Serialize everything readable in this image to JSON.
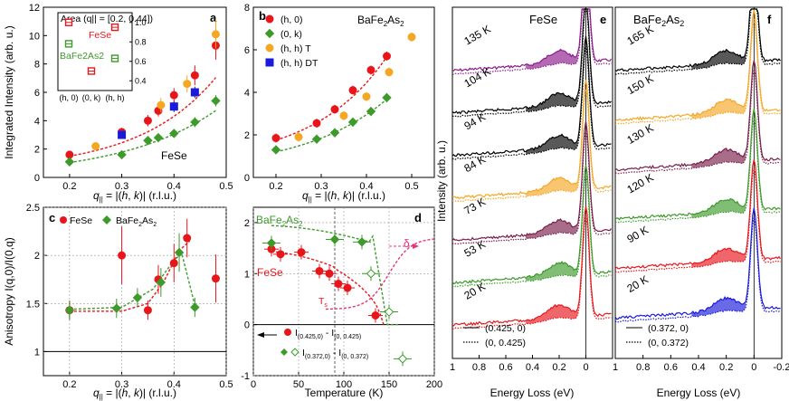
{
  "colors": {
    "red": "#e8161b",
    "green": "#3d9a2b",
    "orange": "#f5a623",
    "blue": "#1a1adc",
    "purple": "#8b1a8b",
    "black": "#000000",
    "plum": "#7a1f4a"
  },
  "chart_data": [
    {
      "panel": "a",
      "type": "scatter",
      "label_text": "FeSe",
      "xlabel": "q|| = |(h, k)| (r.l.u.)",
      "ylabel": "Integrated Intensity (arb. u.)",
      "xlim": [
        0.15,
        0.5
      ],
      "ylim": [
        0,
        12
      ],
      "xticks": [
        "0.2",
        "0.3",
        "0.4",
        "0.5"
      ],
      "yticks": [
        "0",
        "2",
        "4",
        "6",
        "8",
        "10",
        "12"
      ],
      "series": [
        {
          "name": "(h,0)",
          "color": "red",
          "marker": "circle",
          "x": [
            0.2,
            0.3,
            0.35,
            0.37,
            0.4,
            0.44,
            0.48
          ],
          "y": [
            1.6,
            3.2,
            4.0,
            4.7,
            5.8,
            7.2,
            9.3
          ],
          "err": [
            0.15,
            0.3,
            0.4,
            0.4,
            0.5,
            0.7,
            1.0
          ]
        },
        {
          "name": "(0,k)",
          "color": "green",
          "marker": "diamond",
          "x": [
            0.2,
            0.3,
            0.35,
            0.37,
            0.4,
            0.44,
            0.48
          ],
          "y": [
            1.1,
            1.6,
            2.6,
            2.8,
            3.1,
            3.9,
            5.4
          ],
          "err": [
            0.1,
            0.15,
            0.2,
            0.25,
            0.3,
            0.35,
            0.4
          ]
        },
        {
          "name": "(h,h) T",
          "color": "orange",
          "marker": "circle",
          "x": [
            0.25,
            0.375,
            0.425,
            0.48
          ],
          "y": [
            2.2,
            5.1,
            6.6,
            10.1
          ],
          "err": [
            0.2,
            0.5,
            0.6,
            1.0
          ]
        },
        {
          "name": "(h,h) DT",
          "color": "blue",
          "marker": "square",
          "x": [
            0.3,
            0.4,
            0.44
          ],
          "y": [
            3.0,
            5.0,
            6.0
          ],
          "err": [
            0.2,
            0.4,
            0.4
          ]
        }
      ],
      "inset": {
        "title": "Area (q|| = [0.2, 0.44])",
        "xticks": [
          "(h, 0)",
          "(0, k)",
          "(h, h)"
        ],
        "yticks": [
          "0.4",
          "0.6",
          "0.8",
          "1.0"
        ],
        "label_fese": "FeSe",
        "label_bafe": "BaFe2As2"
      }
    },
    {
      "panel": "b",
      "type": "scatter",
      "title": "BaFe2As2",
      "xlabel": "q|| = |(h, k)| (r.l.u.)",
      "xlim": [
        0.15,
        0.55
      ],
      "ylim": [
        0,
        8
      ],
      "xticks": [
        "0.2",
        "0.3",
        "0.4",
        "0.5"
      ],
      "yticks": [
        "0",
        "2",
        "4",
        "6",
        "8"
      ],
      "legend": [
        "(h, 0)",
        "(0, k)",
        "(h, h) T",
        "(h, h) DT"
      ],
      "series": [
        {
          "name": "(h, 0)",
          "color": "red",
          "x": [
            0.2,
            0.29,
            0.33,
            0.37,
            0.41,
            0.445
          ],
          "y": [
            1.85,
            2.55,
            3.2,
            4.1,
            5.05,
            5.7
          ]
        },
        {
          "name": "(0, k)",
          "color": "green",
          "x": [
            0.2,
            0.29,
            0.33,
            0.37,
            0.41,
            0.445
          ],
          "y": [
            1.3,
            1.8,
            2.1,
            2.6,
            3.1,
            3.75
          ]
        },
        {
          "name": "(h, h) T",
          "color": "orange",
          "x": [
            0.25,
            0.35,
            0.4,
            0.45,
            0.5
          ],
          "y": [
            1.9,
            2.9,
            3.8,
            4.95,
            6.6
          ]
        }
      ]
    },
    {
      "panel": "c",
      "type": "scatter",
      "xlabel": "q|| = |(h, k)| (r.l.u.)",
      "ylabel": "Anisotropy I(q,0)/I(0,q)",
      "xlim": [
        0.15,
        0.5
      ],
      "ylim": [
        0.75,
        2.5
      ],
      "xticks": [
        "0.2",
        "0.3",
        "0.4",
        "0.5"
      ],
      "yticks": [
        "1",
        "1.5",
        "2",
        "2.5"
      ],
      "legend": [
        "FeSe",
        "BaFe2As2"
      ],
      "series": [
        {
          "name": "FeSe",
          "color": "red",
          "x": [
            0.2,
            0.3,
            0.35,
            0.37,
            0.4,
            0.425,
            0.48
          ],
          "y": [
            1.43,
            2.0,
            1.43,
            1.75,
            1.92,
            2.18,
            1.76
          ]
        },
        {
          "name": "BaFe2As2",
          "color": "green",
          "x": [
            0.2,
            0.29,
            0.33,
            0.375,
            0.41,
            0.44
          ],
          "y": [
            1.43,
            1.45,
            1.56,
            1.72,
            2.03,
            1.46
          ]
        }
      ]
    },
    {
      "panel": "d",
      "type": "scatter",
      "xlabel": "Temperature (K)",
      "xlim": [
        0,
        200
      ],
      "ylim": [
        -1,
        2.3
      ],
      "xticks": [
        "0",
        "50",
        "100",
        "150",
        "200"
      ],
      "yticks": [
        "-1",
        "0",
        "1",
        "2"
      ],
      "label_bafe": "BaFe2As2",
      "label_fese": "FeSe",
      "label_ts": "Ts",
      "label_delta": "δ",
      "legend": [
        "I(0.425,0) - I(0,0.425)",
        "I(0.372,0) - I(0,0.372)"
      ],
      "series": [
        {
          "name": "FeSe",
          "color": "red",
          "x": [
            20,
            30,
            53,
            73,
            84,
            94,
            104,
            135
          ],
          "y": [
            1.48,
            1.38,
            1.42,
            1.05,
            1.0,
            0.8,
            0.72,
            0.18
          ]
        },
        {
          "name": "BaFe2As2",
          "color": "green",
          "x": [
            20,
            90,
            120,
            130,
            150,
            165
          ],
          "y": [
            1.6,
            1.67,
            1.62,
            1.0,
            0.25,
            -0.67
          ]
        }
      ]
    }
  ],
  "panel_e": {
    "letter": "e",
    "title": "FeSe",
    "temps": [
      "135 K",
      "104 K",
      "94 K",
      "84 K",
      "73 K",
      "53 K",
      "20 K"
    ],
    "legend": [
      "(0.425, 0)",
      "(0, 0.425)"
    ],
    "xlabel": "Energy Loss (eV)",
    "ylabel": "Intensity (arb. u.)",
    "xticks": [
      "1",
      "0.8",
      "0.6",
      "0.4",
      "0.2",
      "0"
    ]
  },
  "panel_f": {
    "letter": "f",
    "title": "BaFe2As2",
    "temps": [
      "165 K",
      "150 K",
      "130 K",
      "120 K",
      "90 K",
      "20 K"
    ],
    "legend": [
      "(0.372, 0)",
      "(0, 0.372)"
    ],
    "xlabel": "Energy Loss (eV)",
    "xticks": [
      "1",
      "0.8",
      "0.6",
      "0.4",
      "0.2",
      "0",
      "-0.2"
    ]
  }
}
